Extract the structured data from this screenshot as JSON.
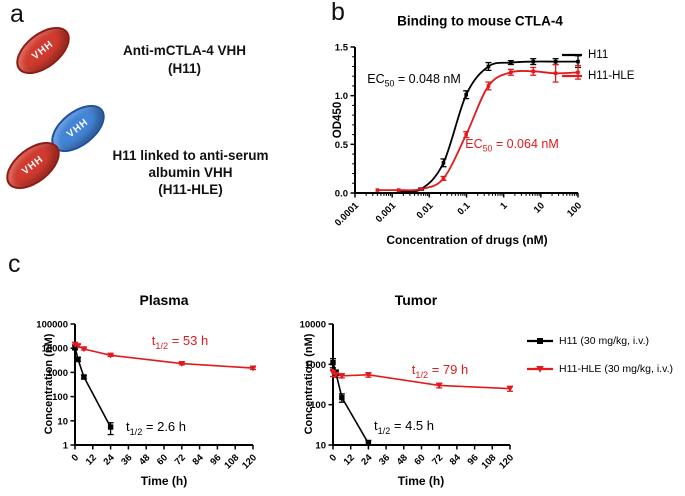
{
  "colors": {
    "black": "#000000",
    "red": "#e11b1d",
    "ellipse_red": "#d13a2e",
    "ellipse_red_border": "#8e1b12",
    "ellipse_blue": "#4384d6",
    "ellipse_blue_border": "#1d4f9c"
  },
  "panels": {
    "a": {
      "label": "a",
      "vhh_red_label": "VHH",
      "vhh_blue_label": "VHH",
      "caption1": [
        "Anti-mCTLA-4 VHH",
        "(H11)"
      ],
      "caption2": [
        "H11 linked to anti-serum",
        "albumin VHH",
        "(H11-HLE)"
      ]
    },
    "b": {
      "label": "b"
    },
    "c": {
      "label": "c"
    }
  },
  "chart_data": [
    {
      "id": "binding",
      "type": "line",
      "title": "Binding to mouse CTLA-4",
      "xlabel": "Concentration of drugs (nM)",
      "ylabel": "OD450",
      "xscale": "log",
      "yscale": "linear",
      "xlim": [
        0.0001,
        100
      ],
      "ylim": [
        0,
        1.5
      ],
      "xticks": {
        "values": [
          0.0001,
          0.001,
          0.01,
          0.1,
          1,
          10,
          100
        ],
        "labels": [
          "0.0001",
          "0.001",
          "0.01",
          "0.1",
          "1",
          "10",
          "100"
        ]
      },
      "yticks": {
        "values": [
          0,
          0.5,
          1.0,
          1.5
        ],
        "labels": [
          "0.0",
          "0.5",
          "1.0",
          "1.5"
        ]
      },
      "minor_x_log": true,
      "minor_y_step": 0.1,
      "legend_position": "right",
      "legend_labels": [
        "H11",
        "H11-HLE"
      ],
      "series": [
        {
          "name": "H11",
          "color": "#000000",
          "marker": "square",
          "smooth": true,
          "x": [
            0.0015,
            0.006,
            0.024,
            0.098,
            0.39,
            1.56,
            6.25,
            25,
            100
          ],
          "y": [
            0.02,
            0.04,
            0.31,
            1.01,
            1.3,
            1.34,
            1.35,
            1.35,
            1.35
          ],
          "err": [
            0,
            0.01,
            0.04,
            0.04,
            0.04,
            0.02,
            0.03,
            0.03,
            0.06
          ]
        },
        {
          "name": "H11-HLE",
          "color": "#e11b1d",
          "marker": "square",
          "smooth": true,
          "x": [
            0.0004,
            0.0015,
            0.006,
            0.024,
            0.098,
            0.39,
            1.56,
            6.25,
            25,
            100
          ],
          "y": [
            0.03,
            0.03,
            0.04,
            0.15,
            0.6,
            1.1,
            1.24,
            1.25,
            1.23,
            1.24
          ],
          "err": [
            0,
            0,
            0,
            0.02,
            0.03,
            0.04,
            0.03,
            0.04,
            0.09,
            0.07
          ]
        }
      ],
      "annotations": [
        {
          "pre": "EC",
          "sub": "50",
          "post": " = 0.048 nM",
          "color": "#000000"
        },
        {
          "pre": "EC",
          "sub": "50",
          "post": " = 0.064 nM",
          "color": "#e11b1d"
        }
      ]
    },
    {
      "id": "plasma",
      "type": "line",
      "title": "Plasma",
      "xlabel": "Time (h)",
      "ylabel": "Concentration (nM)",
      "xscale": "linear",
      "yscale": "log",
      "xlim": [
        0,
        120
      ],
      "ylim": [
        1,
        100000
      ],
      "xticks": {
        "values": [
          0,
          12,
          24,
          36,
          48,
          60,
          72,
          84,
          96,
          108,
          120
        ],
        "labels": [
          "0",
          "12",
          "24",
          "36",
          "48",
          "60",
          "72",
          "84",
          "96",
          "108",
          "120"
        ]
      },
      "yticks": {
        "values": [
          1,
          10,
          100,
          1000,
          10000,
          100000
        ],
        "labels": [
          "1",
          "10",
          "100",
          "1000",
          "10000",
          "100000"
        ]
      },
      "legend_labels": [
        "H11 (30 mg/kg, i.v.)",
        "H11-HLE (30 mg/kg, i.v.)"
      ],
      "series": [
        {
          "name": "H11 (30 mg/kg, i.v.)",
          "color": "#000000",
          "marker": "square",
          "smooth": false,
          "x": [
            0,
            2,
            6,
            24
          ],
          "y": [
            11000,
            3500,
            650,
            5.5
          ],
          "err": [
            2500,
            700,
            120,
            2.8
          ]
        },
        {
          "name": "H11-HLE (30 mg/kg, i.v.)",
          "color": "#e11b1d",
          "marker": "triangle-down",
          "smooth": false,
          "x": [
            0,
            2,
            6,
            24,
            72,
            120
          ],
          "y": [
            14000,
            12500,
            9300,
            5100,
            2300,
            1500
          ],
          "err": [
            3500,
            1500,
            900,
            500,
            250,
            180
          ]
        }
      ],
      "annotations": [
        {
          "pre": "t",
          "sub": "1/2",
          "post": " = 53 h",
          "color": "#e11b1d"
        },
        {
          "pre": "t",
          "sub": "1/2",
          "post": " = 2.6 h",
          "color": "#000000"
        }
      ]
    },
    {
      "id": "tumor",
      "type": "line",
      "title": "Tumor",
      "xlabel": "Time (h)",
      "ylabel": "Concentration (nM)",
      "xscale": "linear",
      "yscale": "log",
      "xlim": [
        0,
        120
      ],
      "ylim": [
        10,
        10000
      ],
      "xticks": {
        "values": [
          0,
          12,
          24,
          36,
          48,
          60,
          72,
          84,
          96,
          108,
          120
        ],
        "labels": [
          "0",
          "12",
          "24",
          "36",
          "48",
          "60",
          "72",
          "84",
          "96",
          "108",
          "120"
        ]
      },
      "yticks": {
        "values": [
          10,
          100,
          1000,
          10000
        ],
        "labels": [
          "10",
          "100",
          "1000",
          "10000"
        ]
      },
      "legend_labels": [
        "H11 (30 mg/kg, i.v.)",
        "H11-HLE (30 mg/kg, i.v.)"
      ],
      "series": [
        {
          "name": "H11 (30 mg/kg, i.v.)",
          "color": "#000000",
          "marker": "square",
          "smooth": false,
          "x": [
            0,
            2,
            6,
            24
          ],
          "y": [
            1100,
            600,
            150,
            11
          ],
          "err": [
            280,
            120,
            35,
            2
          ]
        },
        {
          "name": "H11-HLE (30 mg/kg, i.v.)",
          "color": "#e11b1d",
          "marker": "triangle-down",
          "smooth": false,
          "x": [
            0,
            2,
            6,
            24,
            72,
            120
          ],
          "y": [
            620,
            560,
            520,
            550,
            300,
            250
          ],
          "err": [
            120,
            80,
            60,
            70,
            40,
            35
          ]
        }
      ],
      "annotations": [
        {
          "pre": "t",
          "sub": "1/2",
          "post": " = 79 h",
          "color": "#e11b1d"
        },
        {
          "pre": "t",
          "sub": "1/2",
          "post": " = 4.5 h",
          "color": "#000000"
        }
      ]
    }
  ]
}
